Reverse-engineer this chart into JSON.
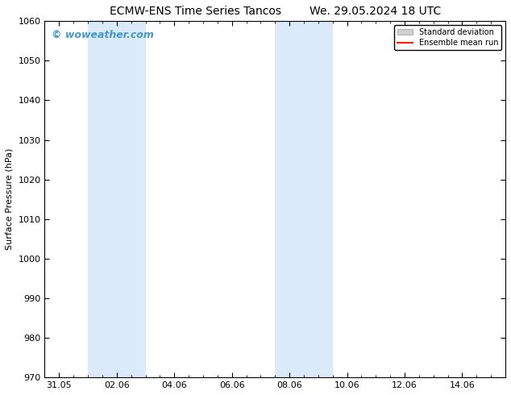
{
  "title_left": "ECMW-ENS Time Series Tancos",
  "title_right": "We. 29.05.2024 18 UTC",
  "ylabel": "Surface Pressure (hPa)",
  "ylim": [
    970,
    1060
  ],
  "yticks": [
    970,
    980,
    990,
    1000,
    1010,
    1020,
    1030,
    1040,
    1050,
    1060
  ],
  "xtick_labels": [
    "31.05",
    "02.06",
    "04.06",
    "06.06",
    "08.06",
    "10.06",
    "12.06",
    "14.06"
  ],
  "xtick_positions": [
    0,
    2,
    4,
    6,
    8,
    10,
    12,
    14
  ],
  "xlim": [
    -0.5,
    15.5
  ],
  "bg_color": "#ffffff",
  "plot_bg_color": "#ffffff",
  "shaded_regions": [
    {
      "x_start": 1.0,
      "x_end": 3.0,
      "color": "#daeaf8"
    },
    {
      "x_start": 7.5,
      "x_end": 9.5,
      "color": "#daeaf8"
    }
  ],
  "watermark_text": "© woweather.com",
  "watermark_color": "#4499cc",
  "legend_std_label": "Standard deviation",
  "legend_mean_label": "Ensemble mean run",
  "legend_std_color": "#d0d0d0",
  "legend_mean_color": "#ff2200",
  "title_fontsize": 10,
  "axis_label_fontsize": 8,
  "tick_fontsize": 8,
  "watermark_fontsize": 9
}
